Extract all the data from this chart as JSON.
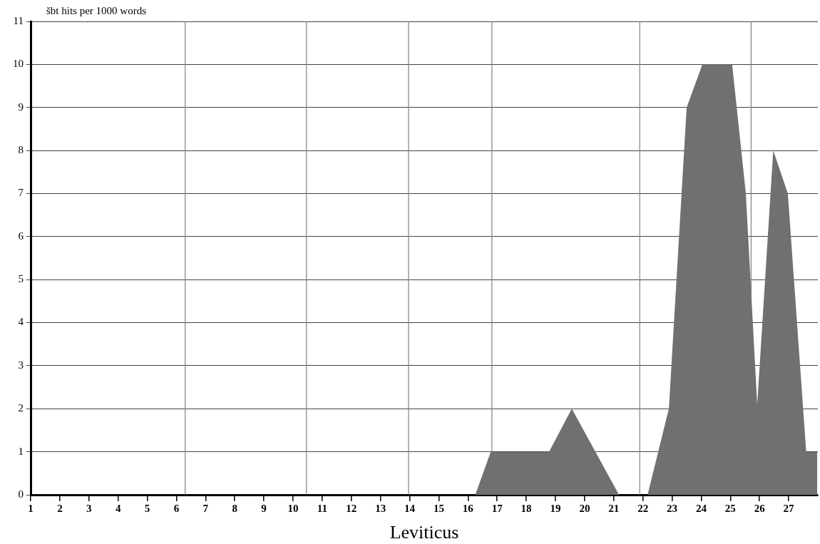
{
  "chart_data": {
    "type": "area",
    "ylabel": "šbt hits per 1000 words",
    "xlabel": "Leviticus",
    "x": [
      1,
      16.25,
      16.78,
      18.78,
      19.56,
      21.18,
      22.16,
      22.89,
      23.5,
      24.04,
      25.06,
      25.53,
      25.92,
      26.47,
      26.97,
      27.6,
      27.98
    ],
    "series": [
      {
        "color": "#707070",
        "values": [
          0,
          0,
          1,
          1,
          2,
          0,
          0,
          2,
          9,
          10,
          10,
          7,
          2.1,
          8,
          7,
          1,
          1
        ]
      }
    ],
    "xlim": [
      1,
      28
    ],
    "xticks": [
      1,
      2,
      3,
      4,
      5,
      6,
      7,
      8,
      9,
      10,
      11,
      12,
      13,
      14,
      15,
      16,
      17,
      18,
      19,
      20,
      21,
      22,
      23,
      24,
      25,
      26,
      27
    ],
    "ylim": [
      0,
      11
    ],
    "yticks": [
      0,
      1,
      2,
      3,
      4,
      5,
      6,
      7,
      8,
      9,
      10,
      11
    ],
    "grid": "y",
    "legend": false,
    "marker": "none",
    "ref_lines": [
      {
        "axis": "x",
        "value": 6.3,
        "color": "#808080"
      },
      {
        "axis": "x",
        "value": 10.46,
        "color": "#808080"
      },
      {
        "axis": "x",
        "value": 13.96,
        "color": "#808080"
      },
      {
        "axis": "x",
        "value": 16.82,
        "color": "#808080"
      },
      {
        "axis": "x",
        "value": 21.89,
        "color": "#808080"
      },
      {
        "axis": "x",
        "value": 25.71,
        "color": "#808080"
      }
    ]
  }
}
